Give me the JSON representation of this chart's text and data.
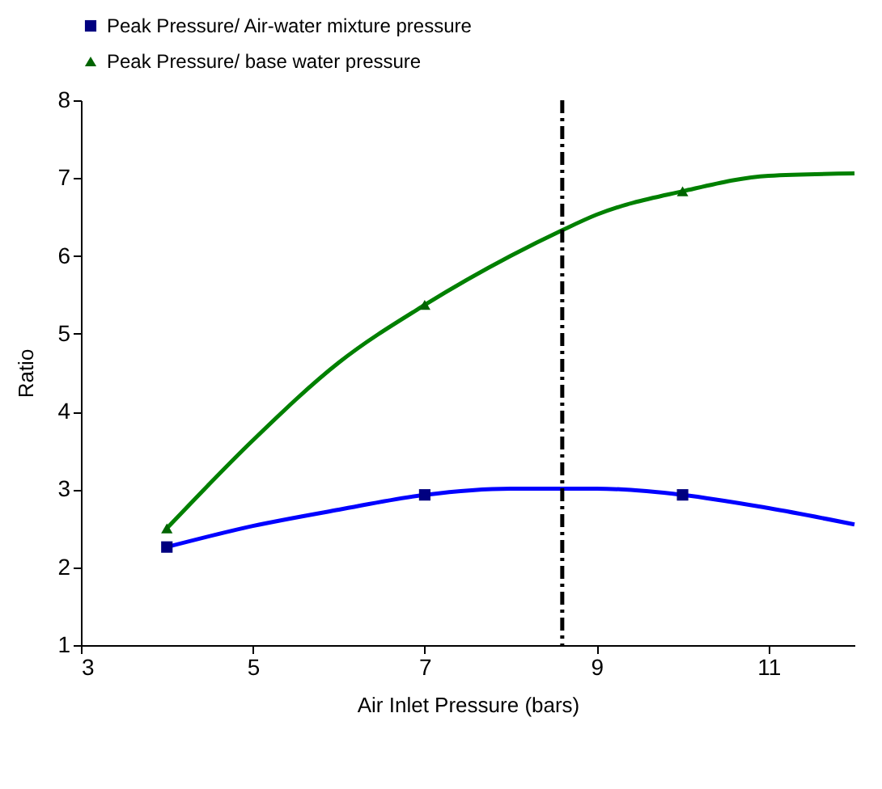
{
  "chart_data": {
    "type": "line",
    "xlabel": "Air Inlet Pressure (bars)",
    "ylabel": "Ratio",
    "xlim": [
      3,
      12
    ],
    "xticks": [
      3,
      5,
      7,
      9,
      11
    ],
    "ylim": [
      1,
      8
    ],
    "yticks": [
      1,
      2,
      3,
      4,
      5,
      6,
      7,
      8
    ],
    "grid": false,
    "legend": "top",
    "series": [
      {
        "color": "#0000ff",
        "marker": "none",
        "x": [
          4,
          5,
          6,
          7,
          8,
          9,
          10,
          11,
          12
        ],
        "values": [
          2.26,
          2.53,
          2.74,
          2.93,
          3.01,
          3.01,
          2.93,
          2.76,
          2.55
        ]
      },
      {
        "color": "#008000",
        "marker": "none",
        "x": [
          4,
          5,
          6,
          7,
          8,
          8.6,
          9,
          10,
          11,
          12
        ],
        "values": [
          2.5,
          3.63,
          4.63,
          5.37,
          6.0,
          6.33,
          6.53,
          6.83,
          7.03,
          7.06
        ]
      },
      {
        "type": "scatter",
        "name": "Peak Pressure/ Air-water mixture pressure",
        "color": "#000080",
        "marker": "square",
        "x": [
          4,
          7,
          10
        ],
        "values": [
          2.26,
          2.93,
          2.93
        ]
      },
      {
        "type": "scatter",
        "name": "Peak Pressure/ base water pressure",
        "color": "#006400",
        "marker": "triangle",
        "x": [
          4,
          7,
          10
        ],
        "values": [
          2.5,
          5.37,
          6.83
        ]
      }
    ],
    "ref_lines": [
      {
        "axis": "x",
        "value": 8.6,
        "color": "#000000",
        "line_style": "dashed"
      }
    ]
  }
}
